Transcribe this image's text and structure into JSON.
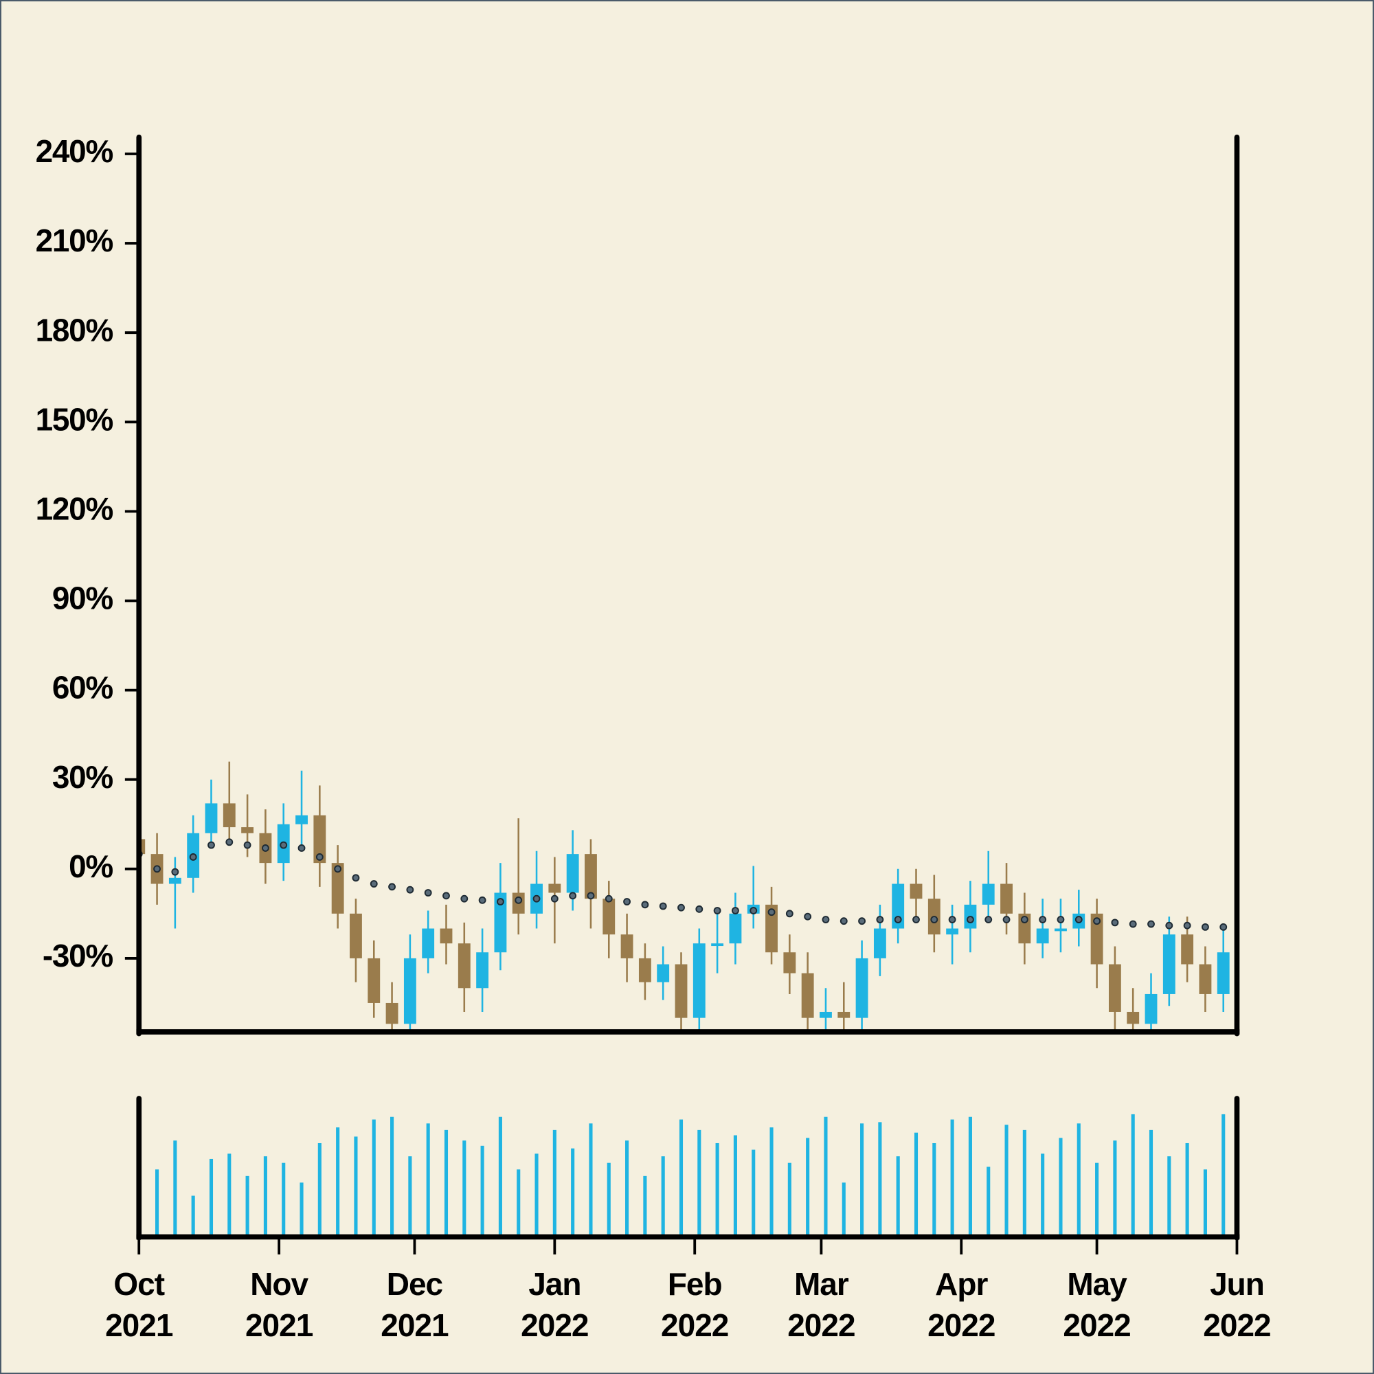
{
  "chart_data": {
    "type": "candlestick",
    "x": [
      "2021-10-01",
      "2021-10-05",
      "2021-10-09",
      "2021-10-13",
      "2021-10-17",
      "2021-10-21",
      "2021-10-25",
      "2021-10-29",
      "2021-11-02",
      "2021-11-06",
      "2021-11-10",
      "2021-11-14",
      "2021-11-18",
      "2021-11-22",
      "2021-11-26",
      "2021-11-30",
      "2021-12-04",
      "2021-12-08",
      "2021-12-12",
      "2021-12-16",
      "2021-12-20",
      "2021-12-24",
      "2021-12-28",
      "2022-01-01",
      "2022-01-05",
      "2022-01-09",
      "2022-01-13",
      "2022-01-17",
      "2022-01-21",
      "2022-01-25",
      "2022-01-29",
      "2022-02-02",
      "2022-02-06",
      "2022-02-10",
      "2022-02-14",
      "2022-02-18",
      "2022-02-22",
      "2022-02-26",
      "2022-03-02",
      "2022-03-06",
      "2022-03-10",
      "2022-03-14",
      "2022-03-18",
      "2022-03-22",
      "2022-03-26",
      "2022-03-30",
      "2022-04-03",
      "2022-04-07",
      "2022-04-11",
      "2022-04-15",
      "2022-04-19",
      "2022-04-23",
      "2022-04-27",
      "2022-05-01",
      "2022-05-05",
      "2022-05-09",
      "2022-05-13",
      "2022-05-17",
      "2022-05-21",
      "2022-05-25",
      "2022-05-29"
    ],
    "open": [
      10,
      5,
      -5,
      -3,
      12,
      22,
      14,
      12,
      2,
      15,
      18,
      2,
      -15,
      -30,
      -45,
      -52,
      -30,
      -20,
      -25,
      -40,
      -28,
      -8,
      -15,
      -5,
      -8,
      5,
      -10,
      -22,
      -30,
      -38,
      -32,
      -50,
      -25,
      -25,
      -15,
      -12,
      -28,
      -35,
      -50,
      -48,
      -50,
      -30,
      -20,
      -5,
      -10,
      -22,
      -20,
      -12,
      -5,
      -15,
      -25,
      -20,
      -20,
      -15,
      -32,
      -48,
      -52,
      -42,
      -22,
      -32,
      -42
    ],
    "high": [
      16,
      12,
      4,
      18,
      30,
      36,
      25,
      20,
      22,
      33,
      28,
      8,
      -10,
      -24,
      -38,
      -22,
      -14,
      -12,
      -18,
      -20,
      2,
      17,
      6,
      4,
      13,
      10,
      -4,
      -15,
      -25,
      -26,
      -28,
      -20,
      -15,
      -8,
      1,
      -6,
      -22,
      -28,
      -40,
      -38,
      -24,
      -12,
      0,
      0,
      -2,
      -12,
      -4,
      6,
      2,
      -8,
      -10,
      -10,
      -7,
      -10,
      -26,
      -40,
      -35,
      -16,
      -16,
      -26,
      -20
    ],
    "low": [
      -2,
      -12,
      -20,
      -8,
      8,
      8,
      4,
      -5,
      -4,
      8,
      -6,
      -20,
      -38,
      -50,
      -60,
      -60,
      -35,
      -32,
      -48,
      -48,
      -34,
      -22,
      -20,
      -25,
      -14,
      -20,
      -30,
      -38,
      -44,
      -44,
      -58,
      -56,
      -35,
      -32,
      -20,
      -32,
      -42,
      -56,
      -58,
      -58,
      -56,
      -36,
      -25,
      -18,
      -28,
      -32,
      -28,
      -18,
      -22,
      -32,
      -30,
      -28,
      -26,
      -40,
      -55,
      -60,
      -60,
      -46,
      -38,
      -48,
      -48
    ],
    "close": [
      5,
      -5,
      -3,
      12,
      22,
      14,
      12,
      2,
      15,
      18,
      2,
      -15,
      -30,
      -45,
      -52,
      -30,
      -20,
      -25,
      -40,
      -28,
      -8,
      -15,
      -5,
      -8,
      5,
      -10,
      -22,
      -30,
      -38,
      -32,
      -50,
      -25,
      -25,
      -15,
      -12,
      -28,
      -35,
      -50,
      -48,
      -50,
      -30,
      -20,
      -5,
      -10,
      -22,
      -20,
      -12,
      -5,
      -15,
      -25,
      -20,
      -20,
      -15,
      -32,
      -48,
      -52,
      -42,
      -22,
      -32,
      -42,
      -28
    ],
    "color_up": "#1fb4e2",
    "color_down": "#9a7c4c",
    "moving_average": {
      "color": "#1e2a33",
      "values": [
        5,
        0,
        -1,
        4,
        8,
        9,
        8,
        7,
        8,
        7,
        4,
        0,
        -3,
        -5,
        -6,
        -7,
        -8,
        -9,
        -10,
        -10.5,
        -11,
        -10.5,
        -10,
        -10,
        -9,
        -9,
        -10,
        -11,
        -12,
        -12.5,
        -13,
        -13.5,
        -14,
        -14,
        -14,
        -14.5,
        -15,
        -16,
        -17,
        -17.5,
        -17.5,
        -17,
        -17,
        -17,
        -17,
        -17,
        -17,
        -17,
        -17,
        -17,
        -17,
        -17,
        -17,
        -17.5,
        -18,
        -18.5,
        -18.5,
        -19,
        -19,
        -19.5,
        -19.5
      ]
    },
    "volume": {
      "color": "#1fb4e2",
      "ylim": [
        0,
        100
      ],
      "values": [
        65,
        50,
        72,
        30,
        58,
        62,
        45,
        60,
        55,
        40,
        70,
        82,
        75,
        88,
        90,
        60,
        85,
        80,
        72,
        68,
        90,
        50,
        62,
        80,
        66,
        85,
        55,
        72,
        45,
        60,
        88,
        80,
        70,
        76,
        65,
        82,
        55,
        74,
        90,
        40,
        85,
        86,
        60,
        78,
        70,
        88,
        90,
        52,
        84,
        80,
        62,
        74,
        85,
        55,
        72,
        92,
        80,
        60,
        70,
        50,
        92
      ]
    },
    "xlim": [
      "2021-10-01",
      "2022-06-01"
    ],
    "xticks": [
      {
        "value": "2021-10-01",
        "label": "Oct 2021"
      },
      {
        "value": "2021-11-01",
        "label": "Nov 2021"
      },
      {
        "value": "2021-12-01",
        "label": "Dec 2021"
      },
      {
        "value": "2022-01-01",
        "label": "Jan 2022"
      },
      {
        "value": "2022-02-01",
        "label": "Feb 2022"
      },
      {
        "value": "2022-03-01",
        "label": "Mar 2022"
      },
      {
        "value": "2022-04-01",
        "label": "Apr 2022"
      },
      {
        "value": "2022-05-01",
        "label": "May 2022"
      },
      {
        "value": "2022-06-01",
        "label": "Jun 2022"
      }
    ],
    "ylim": [
      -54.4,
      245.6
    ],
    "yticks": [
      {
        "value": 240,
        "label": "240%"
      },
      {
        "value": 210,
        "label": "210%"
      },
      {
        "value": 180,
        "label": "180%"
      },
      {
        "value": 150,
        "label": "150%"
      },
      {
        "value": 120,
        "label": "120%"
      },
      {
        "value": 90,
        "label": "90%"
      },
      {
        "value": 60,
        "label": "60%"
      },
      {
        "value": 30,
        "label": "30%"
      },
      {
        "value": 0,
        "label": "0%"
      },
      {
        "value": -30,
        "label": "-30%"
      }
    ]
  }
}
